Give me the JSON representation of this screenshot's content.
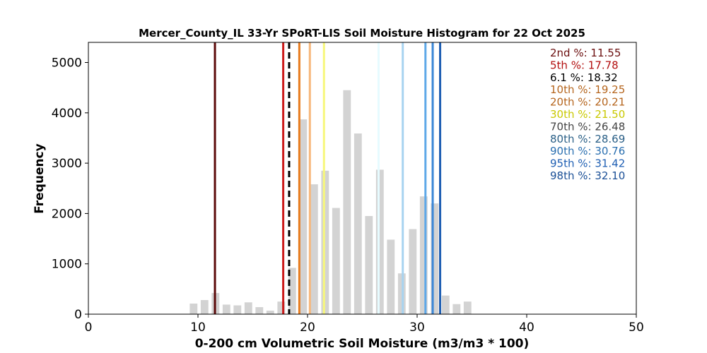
{
  "chart_data": {
    "type": "bar",
    "title": "Mercer_County_IL 33-Yr SPoRT-LIS Soil Moisture Histogram for 22 Oct 2025",
    "xlabel": "0-200 cm Volumetric Soil Moisture (m3/m3 * 100)",
    "ylabel": "Frequency",
    "xlim": [
      0,
      50
    ],
    "ylim": [
      0,
      5400
    ],
    "xticks": [
      0,
      10,
      20,
      30,
      40,
      50
    ],
    "yticks": [
      0,
      1000,
      2000,
      3000,
      4000,
      5000
    ],
    "bar_color": "#d3d3d3",
    "bar_width": 0.7,
    "bars": [
      {
        "x": 9.6,
        "value": 210
      },
      {
        "x": 10.6,
        "value": 280
      },
      {
        "x": 11.6,
        "value": 420
      },
      {
        "x": 12.6,
        "value": 190
      },
      {
        "x": 13.6,
        "value": 175
      },
      {
        "x": 14.6,
        "value": 235
      },
      {
        "x": 15.6,
        "value": 140
      },
      {
        "x": 16.6,
        "value": 70
      },
      {
        "x": 17.6,
        "value": 250
      },
      {
        "x": 18.6,
        "value": 920
      },
      {
        "x": 19.6,
        "value": 3870
      },
      {
        "x": 20.6,
        "value": 2580
      },
      {
        "x": 21.6,
        "value": 2850
      },
      {
        "x": 22.6,
        "value": 2110
      },
      {
        "x": 23.6,
        "value": 4450
      },
      {
        "x": 24.6,
        "value": 3590
      },
      {
        "x": 25.6,
        "value": 1950
      },
      {
        "x": 26.6,
        "value": 2870
      },
      {
        "x": 27.6,
        "value": 1480
      },
      {
        "x": 28.6,
        "value": 810
      },
      {
        "x": 29.6,
        "value": 1690
      },
      {
        "x": 30.6,
        "value": 2340
      },
      {
        "x": 31.6,
        "value": 2200
      },
      {
        "x": 32.6,
        "value": 370
      },
      {
        "x": 33.6,
        "value": 200
      },
      {
        "x": 34.6,
        "value": 250
      }
    ],
    "percentile_lines": [
      {
        "label": "2nd %: 11.55",
        "value": 11.55,
        "color": "#5c0a0a",
        "dashed": false
      },
      {
        "label": "5th %: 17.78",
        "value": 17.78,
        "color": "#cc1a1a",
        "dashed": false
      },
      {
        "label": "6.1 %: 18.32",
        "value": 18.32,
        "color": "#000000",
        "dashed": true
      },
      {
        "label": "10th %: 19.25",
        "value": 19.25,
        "color": "#e87c1e",
        "dashed": false
      },
      {
        "label": "20th %: 20.21",
        "value": 20.21,
        "color": "#f7b77a",
        "dashed": false
      },
      {
        "label": "30th %: 21.50",
        "value": 21.5,
        "color": "#f7f77a",
        "dashed": false
      },
      {
        "label": "70th %: 26.48",
        "value": 26.48,
        "color": "#e6fbff",
        "dashed": false
      },
      {
        "label": "80th %: 28.69",
        "value": 28.69,
        "color": "#a8d3f0",
        "dashed": false
      },
      {
        "label": "90th %: 30.76",
        "value": 30.76,
        "color": "#5da8e8",
        "dashed": false
      },
      {
        "label": "95th %: 31.42",
        "value": 31.42,
        "color": "#3a86d6",
        "dashed": false
      },
      {
        "label": "98th %: 32.10",
        "value": 32.1,
        "color": "#1f5fb3",
        "dashed": false
      }
    ],
    "legend_text_colors": [
      "#6b0f0f",
      "#b30f0f",
      "#000000",
      "#b5651d",
      "#b5651d",
      "#c9c900",
      "#444444",
      "#2a5f86",
      "#2a6fb0",
      "#1f5fb3",
      "#1a4f96"
    ],
    "legend_placement": "top-right",
    "grid": false
  }
}
